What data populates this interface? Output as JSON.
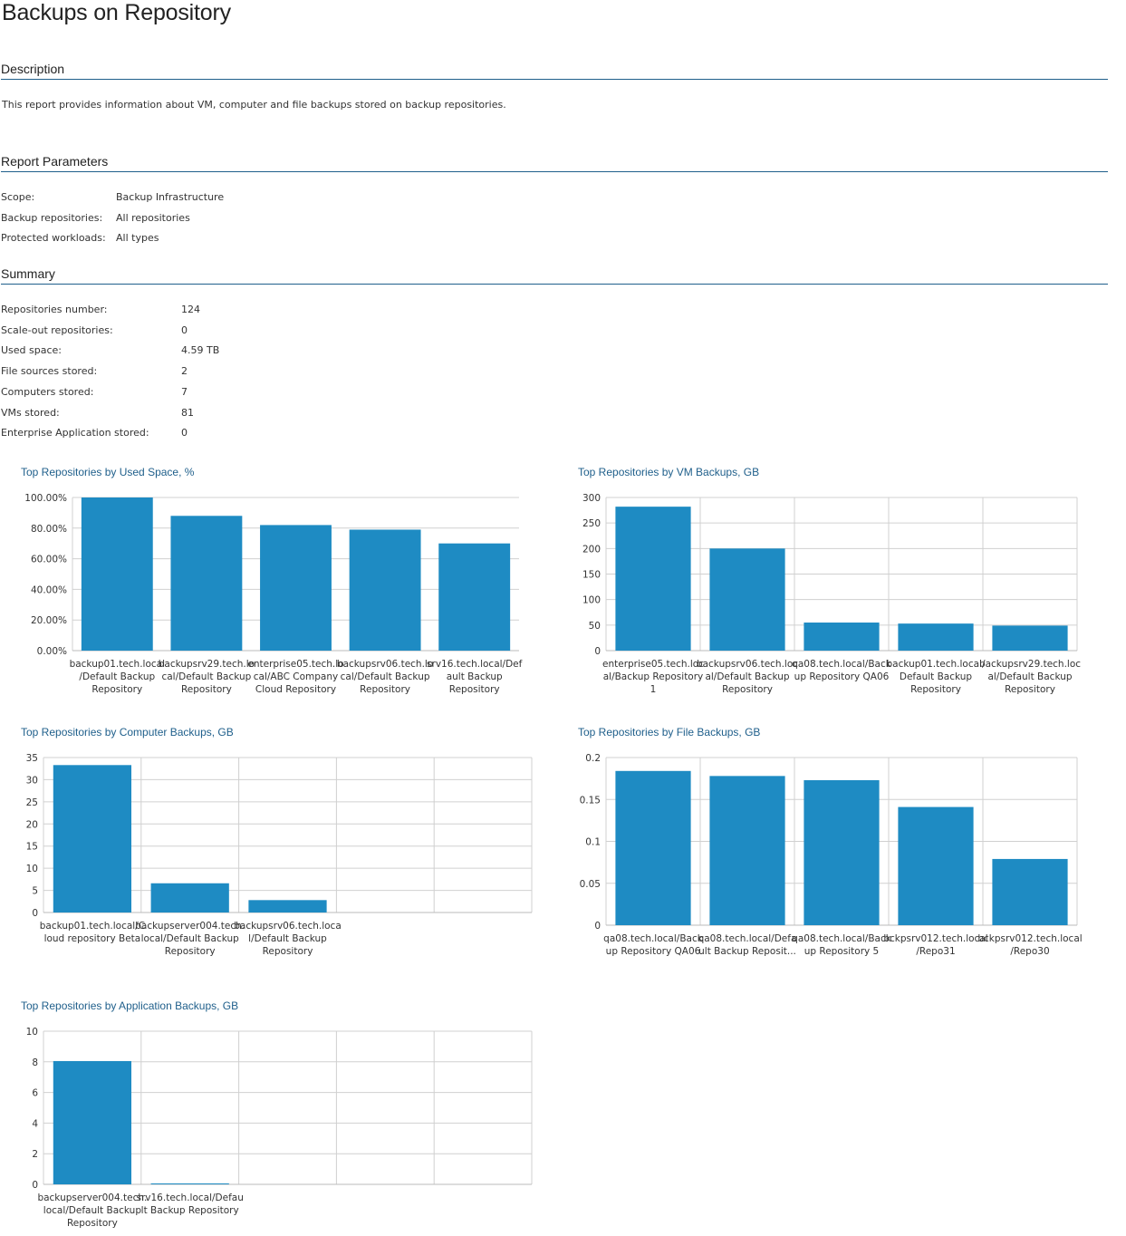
{
  "report": {
    "title": "Backups on Repository",
    "description_header": "Description",
    "description_text": "This report provides information about VM, computer and file backups stored on backup repositories.",
    "params_header": "Report Parameters",
    "params": [
      {
        "label": "Scope:",
        "value": "Backup Infrastructure"
      },
      {
        "label": "Backup repositories:",
        "value": "All repositories"
      },
      {
        "label": "Protected workloads:",
        "value": "All types"
      }
    ],
    "summary_header": "Summary",
    "summary": [
      {
        "label": "Repositories number:",
        "value": "124"
      },
      {
        "label": "Scale-out repositories:",
        "value": "0"
      },
      {
        "label": "Used space:",
        "value": "4.59 TB"
      },
      {
        "label": "File sources stored:",
        "value": "2"
      },
      {
        "label": "Computers stored:",
        "value": "7"
      },
      {
        "label": "VMs stored:",
        "value": "81"
      },
      {
        "label": "Enterprise Application stored:",
        "value": "0"
      }
    ]
  },
  "colors": {
    "bar": "#1e8bc3",
    "grid": "#d0d0d0",
    "title": "#1f5f8b",
    "axis_text": "#333333"
  },
  "chart_data": [
    {
      "id": "used-space",
      "type": "bar",
      "title": "Top Repositories by Used Space, %",
      "categories": [
        [
          "backup01.tech.local",
          "/Default Backup",
          "Repository"
        ],
        [
          "backupsrv29.tech.lo",
          "cal/Default Backup",
          "Repository"
        ],
        [
          "enterprise05.tech.lo",
          "cal/ABC Company",
          "Cloud Repository"
        ],
        [
          "backupsrv06.tech.lo",
          "cal/Default Backup",
          "Repository"
        ],
        [
          "srv16.tech.local/Def",
          "ault Backup",
          "Repository"
        ]
      ],
      "values": [
        100,
        88,
        82,
        79,
        70
      ],
      "ylim": [
        0,
        100
      ],
      "yticks": [
        "0.00%",
        "20.00%",
        "40.00%",
        "60.00%",
        "80.00%",
        "100.00%"
      ],
      "slots": 5,
      "vgrid": false
    },
    {
      "id": "vm-backups",
      "type": "bar",
      "title": "Top Repositories by VM Backups, GB",
      "categories": [
        [
          "enterprise05.tech.loc",
          "al/Backup Repository",
          "1"
        ],
        [
          "backupsrv06.tech.loc",
          "al/Default Backup",
          "Repository"
        ],
        [
          "qa08.tech.local/Back",
          "up Repository QA06"
        ],
        [
          "backup01.tech.local/",
          "Default Backup",
          "Repository"
        ],
        [
          "backupsrv29.tech.loc",
          "al/Default Backup",
          "Repository"
        ]
      ],
      "values": [
        282,
        200,
        55,
        53,
        49
      ],
      "ylim": [
        0,
        300
      ],
      "yticks": [
        "0",
        "50",
        "100",
        "150",
        "200",
        "250",
        "300"
      ],
      "slots": 5,
      "vgrid": true
    },
    {
      "id": "computer-backups",
      "type": "bar",
      "title": "Top Repositories by Computer Backups, GB",
      "categories": [
        [
          "backup01.tech.local/C",
          "loud repository Beta"
        ],
        [
          "backupserver004.tech.",
          "local/Default Backup",
          "Repository"
        ],
        [
          "backupsrv06.tech.loca",
          "l/Default Backup",
          "Repository"
        ]
      ],
      "values": [
        33.3,
        6.6,
        2.8
      ],
      "ylim": [
        0,
        35
      ],
      "yticks": [
        "0",
        "5",
        "10",
        "15",
        "20",
        "25",
        "30",
        "35"
      ],
      "slots": 5,
      "vgrid": true
    },
    {
      "id": "file-backups",
      "type": "bar",
      "title": "Top Repositories by File Backups, GB",
      "categories": [
        [
          "qa08.tech.local/Back",
          "up Repository QA06"
        ],
        [
          "qa08.tech.local/Defa",
          "ult Backup Reposit..."
        ],
        [
          "qa08.tech.local/Back",
          "up Repository 5"
        ],
        [
          "bckpsrv012.tech.local",
          "/Repo31"
        ],
        [
          "bckpsrv012.tech.local",
          "/Repo30"
        ]
      ],
      "values": [
        0.184,
        0.178,
        0.173,
        0.141,
        0.079
      ],
      "ylim": [
        0,
        0.2
      ],
      "yticks": [
        "0",
        "0.05",
        "0.1",
        "0.15",
        "0.2"
      ],
      "slots": 5,
      "vgrid": true
    },
    {
      "id": "application-backups",
      "type": "bar",
      "title": "Top Repositories by Application Backups, GB",
      "categories": [
        [
          "backupserver004.tech.",
          "local/Default Backup",
          "Repository"
        ],
        [
          "srv16.tech.local/Defau",
          "lt Backup Repository"
        ]
      ],
      "values": [
        8.05,
        0.05
      ],
      "ylim": [
        0,
        10
      ],
      "yticks": [
        "0",
        "2",
        "4",
        "6",
        "8",
        "10"
      ],
      "slots": 5,
      "vgrid": true
    }
  ]
}
